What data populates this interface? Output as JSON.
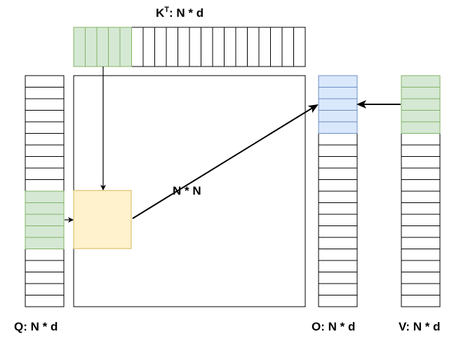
{
  "labels": {
    "kt_base": "K",
    "kt_sup": "T",
    "kt_rest": ": N * d",
    "q": "Q: N * d",
    "o": "O: N * d",
    "v": "V: N * d",
    "matrix": "N * N"
  },
  "colors": {
    "line": "#000000",
    "green_fill": "#d5e8d4",
    "green_stroke": "#82b366",
    "blue_fill": "#dae8fc",
    "blue_stroke": "#6c8ebf",
    "yellow_fill": "#fff2cc",
    "yellow_stroke": "#d6b656"
  },
  "matrices": {
    "kt": {
      "cells": 20,
      "highlighted": 5,
      "highlight_color": "green"
    },
    "q": {
      "cells": 20,
      "highlight_start": 10,
      "highlight_count": 5,
      "highlight_color": "green"
    },
    "o": {
      "cells": 20,
      "highlight_start": 0,
      "highlight_count": 5,
      "highlight_color": "blue"
    },
    "v": {
      "cells": 20,
      "highlight_start": 0,
      "highlight_count": 5,
      "highlight_color": "green"
    }
  }
}
